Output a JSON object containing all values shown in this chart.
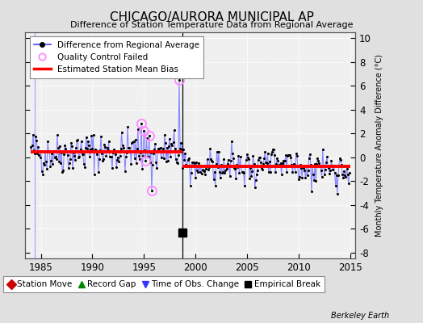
{
  "title": "CHICAGO/AURORA MUNICIPAL AP",
  "subtitle": "Difference of Station Temperature Data from Regional Average",
  "ylabel_right": "Monthly Temperature Anomaly Difference (°C)",
  "xlim": [
    1983.5,
    2015.5
  ],
  "ylim": [
    -8.5,
    10.5
  ],
  "yticks": [
    -8,
    -6,
    -4,
    -2,
    0,
    2,
    4,
    6,
    8,
    10
  ],
  "xticks": [
    1985,
    1990,
    1995,
    2000,
    2005,
    2010,
    2015
  ],
  "bias_before": 0.45,
  "bias_after": -0.78,
  "break_year": 1998.75,
  "start_year": 1984.0,
  "end_year": 2015.0,
  "background_color": "#e0e0e0",
  "plot_bg_color": "#f0f0f0",
  "line_color": "#8888ff",
  "dot_color": "#000000",
  "bias_color": "#ff0000",
  "qc_color": "#ff88ff",
  "vline_before_color": "#aaaaff",
  "break_vline_color": "#000000",
  "watermark": "Berkeley Earth",
  "legend2_entries": [
    {
      "label": "Station Move",
      "color": "#cc0000",
      "marker": "D"
    },
    {
      "label": "Record Gap",
      "color": "#008800",
      "marker": "^"
    },
    {
      "label": "Time of Obs. Change",
      "color": "#3333ff",
      "marker": "v"
    },
    {
      "label": "Empirical Break",
      "color": "#000000",
      "marker": "s"
    }
  ],
  "empirical_break_x": 1998.75,
  "empirical_break_y": -6.3,
  "early_vline_x": 1984.42,
  "seed": 42
}
